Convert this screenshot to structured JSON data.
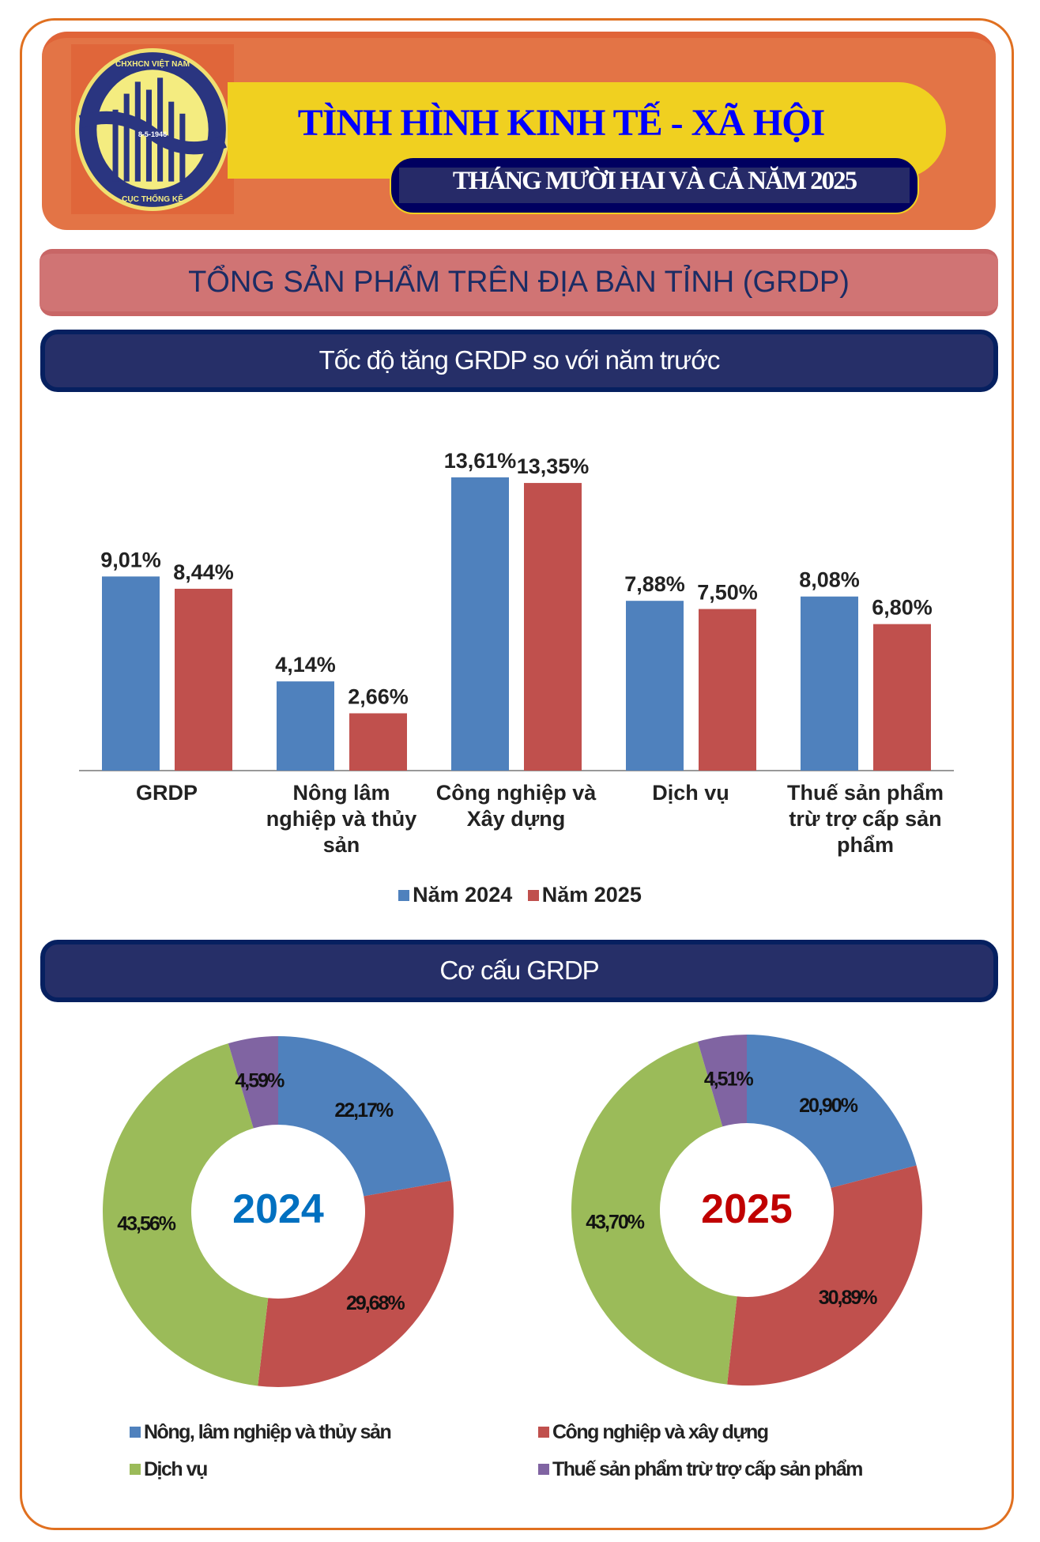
{
  "header": {
    "title": "TÌNH HÌNH KINH TẾ - XÃ HỘI",
    "subtitle": "THÁNG MƯỜI HAI VÀ CẢ NĂM 2025",
    "logo_text": [
      "CHXHCN VIỆT NAM",
      "8-5-1946",
      "CỤC THỐNG KÊ"
    ]
  },
  "banner": "TỔNG SẢN PHẨM TRÊN ĐỊA BÀN TỈNH (GRDP)",
  "sections": {
    "growth_title": "Tốc độ tăng GRDP so với năm trước",
    "structure_title": "Cơ cấu GRDP"
  },
  "colors": {
    "blue": "#4f81bd",
    "red": "#c0504d",
    "green": "#9bbb59",
    "purple": "#8064a2"
  },
  "chart_data": [
    {
      "type": "bar",
      "categories": [
        "GRDP",
        "Nông lâm nghiệp và thủy sản",
        "Công nghiệp và Xây dựng",
        "Dịch vụ",
        "Thuế sản phẩm trừ trợ cấp sản phẩm"
      ],
      "category_lines": [
        [
          "GRDP"
        ],
        [
          "Nông lâm",
          "nghiệp và thủy",
          "sản"
        ],
        [
          "Công nghiệp và",
          "Xây dựng"
        ],
        [
          "Dịch vụ"
        ],
        [
          "Thuế sản phẩm",
          "trừ trợ cấp sản",
          "phẩm"
        ]
      ],
      "series": [
        {
          "name": "Năm 2024",
          "values": [
            9.01,
            4.14,
            13.61,
            7.88,
            8.08
          ],
          "labels": [
            "9,01%",
            "4,14%",
            "13,61%",
            "7,88%",
            "8,08%"
          ],
          "color": "#4f81bd"
        },
        {
          "name": "Năm 2025",
          "values": [
            8.44,
            2.66,
            13.35,
            7.5,
            6.8
          ],
          "labels": [
            "8,44%",
            "2,66%",
            "13,35%",
            "7,50%",
            "6,80%"
          ],
          "color": "#c0504d"
        }
      ],
      "legend": "bottom",
      "grid": false
    },
    {
      "type": "pie",
      "center_label": "2024",
      "center_color": "#0070c0",
      "categories": [
        "Nông, lâm nghiệp và thủy sản",
        "Công nghiệp và xây dựng",
        "Dịch vụ",
        "Thuế sản phẩm trừ trợ cấp sản phẩm"
      ],
      "values": [
        22.17,
        29.68,
        43.56,
        4.59
      ],
      "labels": [
        "22,17%",
        "29,68%",
        "43,56%",
        "4,59%"
      ]
    },
    {
      "type": "pie",
      "center_label": "2025",
      "center_color": "#c00000",
      "categories": [
        "Nông, lâm nghiệp và thủy sản",
        "Công nghiệp và xây dựng",
        "Dịch vụ",
        "Thuế sản phẩm trừ trợ cấp sản phẩm"
      ],
      "values": [
        20.9,
        30.89,
        43.7,
        4.51
      ],
      "labels": [
        "20,90%",
        "30,89%",
        "43,70%",
        "4,51%"
      ]
    }
  ]
}
